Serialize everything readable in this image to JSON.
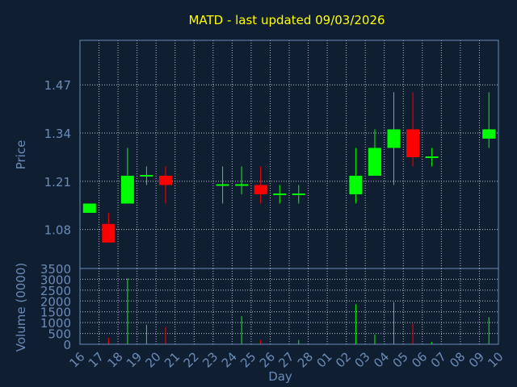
{
  "chart_data": {
    "type": "candlestick",
    "title": "MATD - last updated 09/03/2026",
    "xlabel": "Day",
    "price_ylabel": "Price",
    "volume_ylabel": "Volume (0000)",
    "x_tick_labels": [
      "16",
      "17",
      "18",
      "19",
      "20",
      "21",
      "22",
      "23",
      "24",
      "25",
      "26",
      "27",
      "28",
      "01",
      "02",
      "03",
      "04",
      "05",
      "06",
      "07",
      "08",
      "09",
      "10"
    ],
    "price_ticks": [
      "1.08",
      "1.21",
      "1.34",
      "1.47"
    ],
    "price_tick_values": [
      1.08,
      1.21,
      1.34,
      1.47
    ],
    "price_ylim": [
      0.975,
      1.59
    ],
    "volume_ticks": [
      "0",
      "500",
      "1000",
      "1500",
      "2000",
      "2500",
      "3000",
      "3500"
    ],
    "volume_ylim": [
      0,
      3500
    ],
    "grid": true,
    "up_color": "#00ff00",
    "down_color": "#ff0000",
    "background": "#0f1e30",
    "title_color": "#ffff00",
    "axis_color": "#6b8cb8",
    "candles": [
      {
        "day": "16",
        "open": 1.125,
        "high": 1.15,
        "low": 1.125,
        "close": 1.15,
        "volume": 0
      },
      {
        "day": "17",
        "open": 1.095,
        "high": 1.125,
        "low": 1.045,
        "close": 1.045,
        "volume": 300
      },
      {
        "day": "18",
        "open": 1.15,
        "high": 1.3,
        "low": 1.15,
        "close": 1.225,
        "volume": 3050
      },
      {
        "day": "19",
        "open": 1.225,
        "high": 1.25,
        "low": 1.2,
        "close": 1.225,
        "volume": 900
      },
      {
        "day": "20",
        "open": 1.225,
        "high": 1.25,
        "low": 1.15,
        "close": 1.2,
        "volume": 800
      },
      {
        "day": "23",
        "open": 1.2,
        "high": 1.25,
        "low": 1.15,
        "close": 1.2,
        "volume": 0
      },
      {
        "day": "24",
        "open": 1.2,
        "high": 1.25,
        "low": 1.175,
        "close": 1.2,
        "volume": 1300
      },
      {
        "day": "25",
        "open": 1.2,
        "high": 1.25,
        "low": 1.15,
        "close": 1.175,
        "volume": 200
      },
      {
        "day": "26",
        "open": 1.175,
        "high": 1.2,
        "low": 1.15,
        "close": 1.175,
        "volume": 0
      },
      {
        "day": "27",
        "open": 1.175,
        "high": 1.2,
        "low": 1.15,
        "close": 1.175,
        "volume": 200
      },
      {
        "day": "02",
        "open": 1.175,
        "high": 1.3,
        "low": 1.15,
        "close": 1.225,
        "volume": 1850
      },
      {
        "day": "03",
        "open": 1.225,
        "high": 1.35,
        "low": 1.225,
        "close": 1.3,
        "volume": 450
      },
      {
        "day": "04",
        "open": 1.3,
        "high": 1.45,
        "low": 1.2,
        "close": 1.35,
        "volume": 1950
      },
      {
        "day": "05",
        "open": 1.35,
        "high": 1.45,
        "low": 1.25,
        "close": 1.275,
        "volume": 950
      },
      {
        "day": "06",
        "open": 1.275,
        "high": 1.3,
        "low": 1.25,
        "close": 1.275,
        "volume": 100
      },
      {
        "day": "09",
        "open": 1.325,
        "high": 1.45,
        "low": 1.3,
        "close": 1.35,
        "volume": 1250
      }
    ]
  }
}
